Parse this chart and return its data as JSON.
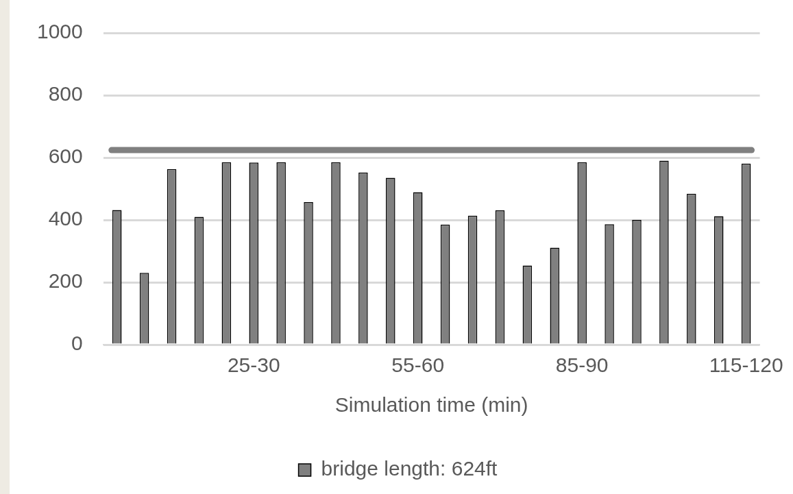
{
  "chart_data": {
    "type": "bar",
    "xlabel": "Simulation time (min)",
    "categories": [
      null,
      null,
      null,
      null,
      null,
      "25-30",
      null,
      null,
      null,
      null,
      null,
      "55-60",
      null,
      null,
      null,
      null,
      null,
      "85-90",
      null,
      null,
      null,
      null,
      null,
      "115-120"
    ],
    "series": [
      {
        "name": "bridge length: 624ft",
        "color": "#808080",
        "values": [
          432,
          230,
          563,
          410,
          585,
          584,
          585,
          457,
          585,
          552,
          535,
          489,
          385,
          414,
          431,
          254,
          311,
          585,
          386,
          400,
          590,
          484,
          412,
          581
        ]
      }
    ],
    "ylim": [
      0,
      1000
    ],
    "yticks": [
      0,
      200,
      400,
      600,
      800,
      1000
    ],
    "ref_lines": [
      {
        "axis": "y",
        "value": 624,
        "color": "#808080"
      }
    ],
    "grid": "y",
    "legend": "bottom"
  }
}
